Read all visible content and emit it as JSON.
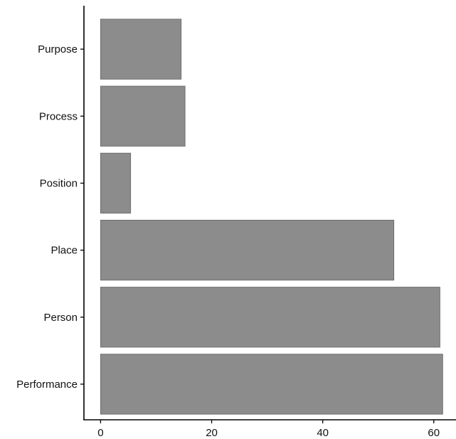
{
  "chart_data": {
    "type": "bar",
    "orientation": "horizontal",
    "categories": [
      "Purpose",
      "Process",
      "Position",
      "Place",
      "Person",
      "Performance"
    ],
    "values": [
      14.5,
      15.2,
      5.4,
      52.8,
      61.1,
      61.6
    ],
    "xticks": [
      0,
      20,
      40,
      60
    ],
    "xlim": [
      -3,
      64
    ],
    "title": "",
    "xlabel": "",
    "ylabel": "",
    "grid": false,
    "legend": "none",
    "bar_color": "#8c8c8c"
  }
}
